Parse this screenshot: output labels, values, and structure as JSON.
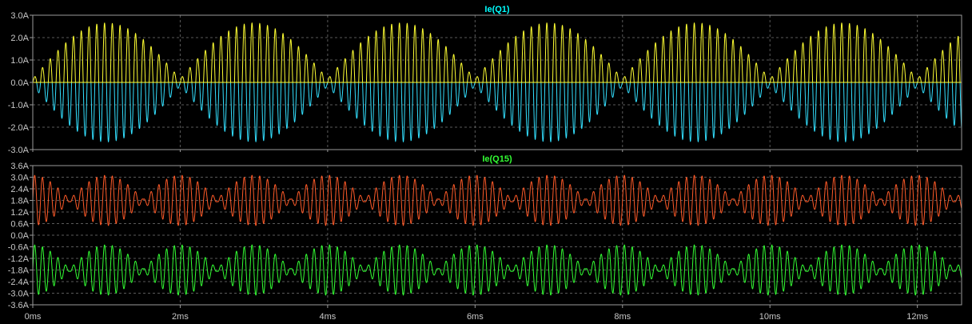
{
  "chart_data": [
    {
      "type": "line",
      "title": "Ie(Q1)",
      "title_color": "#00ffff",
      "ylim": [
        -3.0,
        3.0
      ],
      "y_ticks": [
        "3.0A",
        "2.0A",
        "1.0A",
        "0.0A",
        "-1.0A",
        "-2.0A",
        "-3.0A"
      ],
      "y_tick_values": [
        3.0,
        2.0,
        1.0,
        0.0,
        -1.0,
        -2.0,
        -3.0
      ],
      "grid": true,
      "series": [
        {
          "color": "#ffff33",
          "carrier_khz": 9.5,
          "envelope_period_ms": 2.0,
          "envelope_peak_ms": 1.0,
          "peak": 2.65,
          "trough": 0.15,
          "half_wave": "positive"
        },
        {
          "color": "#33e0ff",
          "carrier_khz": 9.5,
          "envelope_period_ms": 2.0,
          "envelope_peak_ms": 1.0,
          "peak": 2.65,
          "trough": 0.15,
          "half_wave": "negative"
        }
      ]
    },
    {
      "type": "line",
      "title": "Ie(Q15)",
      "title_color": "#33ff33",
      "ylim": [
        -3.6,
        3.6
      ],
      "y_ticks": [
        "3.6A",
        "3.0A",
        "2.4A",
        "1.8A",
        "1.2A",
        "0.6A",
        "0.0A",
        "-0.6A",
        "-1.2A",
        "-1.8A",
        "-2.4A",
        "-3.0A",
        "-3.6A"
      ],
      "y_tick_values": [
        3.6,
        3.0,
        2.4,
        1.8,
        1.2,
        0.6,
        0.0,
        -0.6,
        -1.2,
        -1.8,
        -2.4,
        -3.0,
        -3.6
      ],
      "grid": true,
      "series": [
        {
          "color": "#ff5a28",
          "carrier_khz": 9.5,
          "envelope_period_ms": 1.0,
          "envelope_peak_ms": 0.0,
          "center": 1.8,
          "peak_amplitude": 1.3,
          "min_amplitude": 0.05
        },
        {
          "color": "#33ff33",
          "carrier_khz": 9.5,
          "envelope_period_ms": 1.0,
          "envelope_peak_ms": 0.0,
          "center": -1.8,
          "peak_amplitude": 1.3,
          "min_amplitude": 0.05
        }
      ]
    }
  ],
  "x_axis": {
    "xlim_ms": [
      0,
      12.6
    ],
    "ticks": [
      "0ms",
      "2ms",
      "4ms",
      "6ms",
      "8ms",
      "10ms",
      "12ms"
    ],
    "tick_values_ms": [
      0,
      2,
      4,
      6,
      8,
      10,
      12
    ]
  },
  "colors": {
    "background": "#000000",
    "frame": "#9a9a9a",
    "grid": "#5a5a5a",
    "tick_text": "#c8c8c8"
  }
}
